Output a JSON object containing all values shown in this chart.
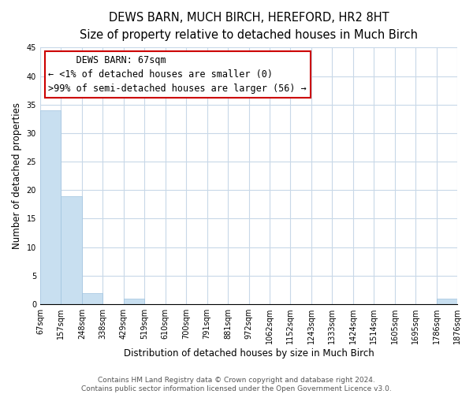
{
  "title": "DEWS BARN, MUCH BIRCH, HEREFORD, HR2 8HT",
  "subtitle": "Size of property relative to detached houses in Much Birch",
  "xlabel": "Distribution of detached houses by size in Much Birch",
  "ylabel": "Number of detached properties",
  "bin_edges": [
    67,
    157,
    248,
    338,
    429,
    519,
    610,
    700,
    791,
    881,
    972,
    1062,
    1152,
    1243,
    1333,
    1424,
    1514,
    1605,
    1695,
    1786,
    1876
  ],
  "bar_heights": [
    34,
    19,
    2,
    0,
    1,
    0,
    0,
    0,
    0,
    0,
    0,
    0,
    0,
    0,
    0,
    0,
    0,
    0,
    0,
    1
  ],
  "bar_color": "#c8dff0",
  "bar_edgecolor": "#a0c4e0",
  "ylim": [
    0,
    45
  ],
  "yticks": [
    0,
    5,
    10,
    15,
    20,
    25,
    30,
    35,
    40,
    45
  ],
  "annotation_title": "DEWS BARN: 67sqm",
  "annotation_line1": "← <1% of detached houses are smaller (0)",
  "annotation_line2": ">99% of semi-detached houses are larger (56) →",
  "annotation_box_color": "#ffffff",
  "annotation_box_edgecolor": "#cc0000",
  "footer_line1": "Contains HM Land Registry data © Crown copyright and database right 2024.",
  "footer_line2": "Contains public sector information licensed under the Open Government Licence v3.0.",
  "background_color": "#ffffff",
  "grid_color": "#c8d8e8",
  "title_fontsize": 10.5,
  "subtitle_fontsize": 9.5,
  "tick_label_fontsize": 7,
  "axis_label_fontsize": 8.5,
  "footer_fontsize": 6.5,
  "annotation_fontsize": 8.5
}
